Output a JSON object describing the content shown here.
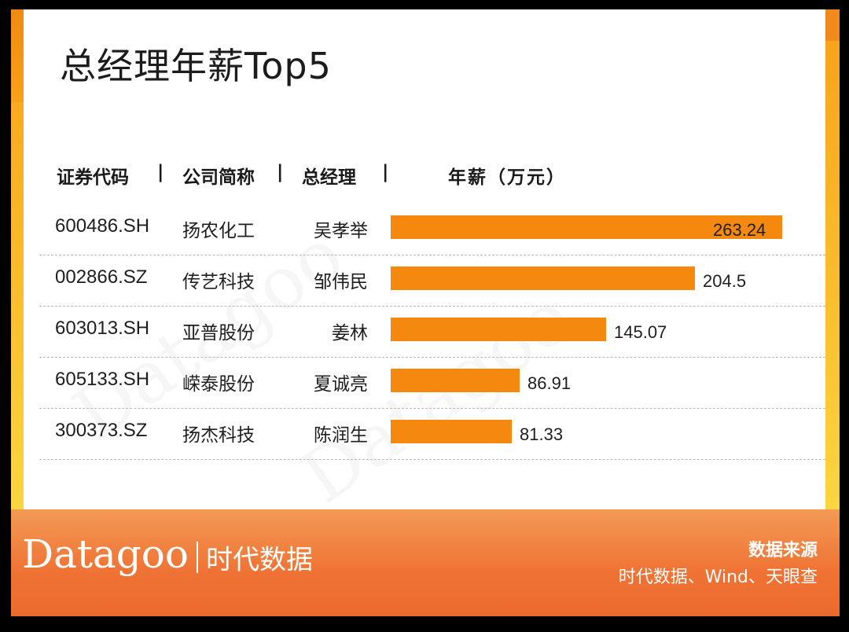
{
  "title": "总经理年薪Top5",
  "headers": {
    "code": "证券代码",
    "company": "公司简称",
    "manager": "总经理",
    "salary": "年薪（万元）",
    "sep": "|"
  },
  "chart_data": {
    "type": "bar",
    "title": "总经理年薪Top5",
    "ylabel": "年薪（万元）",
    "categories": [
      "600486.SH",
      "002866.SZ",
      "603013.SH",
      "605133.SH",
      "300373.SZ"
    ],
    "series": [
      {
        "name": "年薪（万元）",
        "values": [
          263.24,
          204.5,
          145.07,
          86.91,
          81.33
        ]
      }
    ],
    "value_labels": [
      "263.24",
      "204.5",
      "145.07",
      "86.91",
      "81.33"
    ],
    "rows": [
      {
        "code": "600486.SH",
        "company": "扬农化工",
        "manager": "吴孝举"
      },
      {
        "code": "002866.SZ",
        "company": "传艺科技",
        "manager": "邹伟民"
      },
      {
        "code": "603013.SH",
        "company": "亚普股份",
        "manager": "姜林"
      },
      {
        "code": "605133.SH",
        "company": "嵘泰股份",
        "manager": "夏诚亮"
      },
      {
        "code": "300373.SZ",
        "company": "扬杰科技",
        "manager": "陈润生"
      }
    ],
    "bar_color": "#f5890f",
    "orientation": "horizontal"
  },
  "brand": {
    "name": "Datagoo",
    "cn": "时代数据"
  },
  "source": {
    "label": "数据来源",
    "text": "时代数据、Wind、天眼查"
  },
  "colors": {
    "accent": "#f5890f",
    "footer": "#ef7234",
    "frame": "#f9c030"
  }
}
